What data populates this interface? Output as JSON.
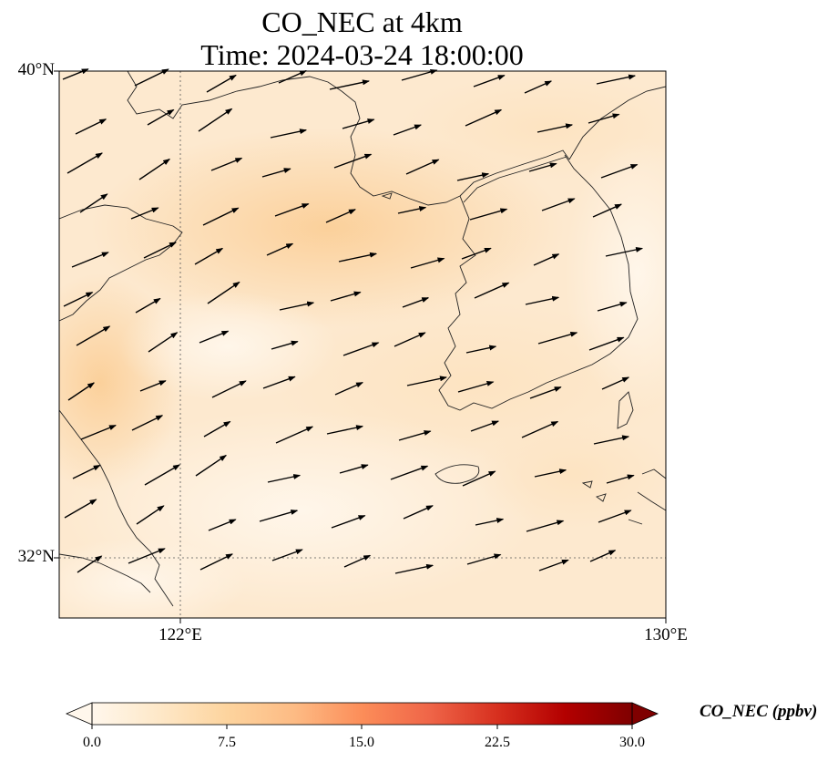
{
  "title_line1": "CO_NEC at 4km",
  "title_line2": "Time: 2024-03-24 18:00:00",
  "lat_labels": [
    "40°N",
    "32°N"
  ],
  "lon_labels": [
    "122°E",
    "130°E"
  ],
  "colorbar": {
    "label": "CO_NEC (ppbv)",
    "ticks": [
      "0.0",
      "7.5",
      "15.0",
      "22.5",
      "30.0"
    ],
    "range": [
      0,
      30
    ],
    "extend": "both",
    "colormap": [
      "#fff7ec",
      "#fee8c8",
      "#fdd49e",
      "#fdbb84",
      "#fc8d59",
      "#ef6548",
      "#d7301f",
      "#b30000",
      "#7f0000"
    ]
  },
  "chart_data": {
    "type": "heatmap",
    "title": "CO_NEC at 4km\nTime: 2024-03-24 18:00:00",
    "variable": "CO_NEC",
    "units": "ppbv",
    "level": "4km",
    "time": "2024-03-24 18:00:00",
    "lon_range": [
      120,
      130
    ],
    "lat_range": [
      31,
      40
    ],
    "gridlines": {
      "lon": [
        122
      ],
      "lat": [
        32
      ]
    },
    "value_range_observed": [
      0,
      8
    ],
    "wind_vectors": "shown (mostly westerly to west-southwesterly)"
  }
}
